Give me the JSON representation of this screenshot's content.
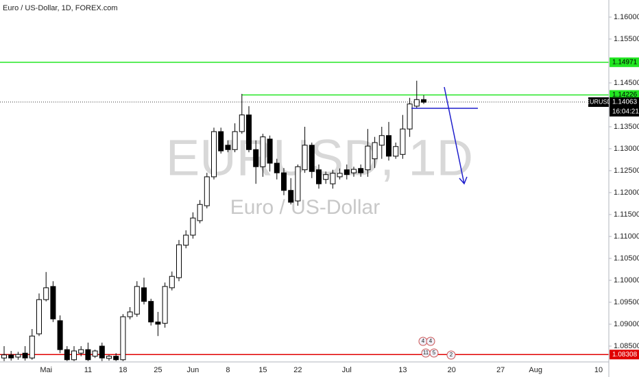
{
  "chart_data": {
    "type": "candlestick",
    "title": "Euro / US-Dollar, 1D, FOREX.com",
    "watermark": "EURUSD, 1D",
    "watermark_subtitle": "Euro / US-Dollar",
    "categories": [
      null,
      null,
      null,
      null,
      null,
      null,
      "Mai",
      null,
      null,
      null,
      null,
      null,
      "11",
      null,
      null,
      null,
      null,
      "18",
      null,
      null,
      null,
      null,
      "25",
      null,
      null,
      null,
      null,
      "Jun",
      null,
      null,
      null,
      null,
      "8",
      null,
      null,
      null,
      null,
      "15",
      null,
      null,
      null,
      null,
      "22",
      null,
      null,
      null,
      null,
      null,
      null,
      "Jul",
      null,
      null,
      null,
      null,
      null,
      null,
      null,
      "13",
      null,
      null,
      null,
      null,
      null,
      null,
      "20",
      null,
      null,
      null,
      null,
      null,
      null,
      "27",
      null,
      null,
      null,
      null,
      "Aug",
      null,
      null,
      null,
      null,
      null,
      null,
      null,
      null,
      "10",
      null
    ],
    "open": [
      1.0823,
      1.083,
      1.0825,
      1.0834,
      1.0823,
      1.0878,
      1.0956,
      1.0986,
      1.0908,
      1.0842,
      1.0819,
      1.0834,
      1.0842,
      1.0827,
      1.085,
      1.0822,
      1.0827,
      1.0819,
      1.0917,
      1.0923,
      1.0983,
      1.0952,
      1.0905,
      1.0902,
      1.0983,
      1.1006,
      1.108,
      1.1103,
      1.1136,
      1.117,
      1.1236,
      1.1339,
      1.1308,
      1.1298,
      1.1339,
      1.1377,
      1.1298,
      1.1259,
      1.1322,
      1.1267,
      1.1245,
      1.1205,
      1.1181,
      1.1252,
      1.1308,
      1.1252,
      1.123,
      1.122,
      1.1236,
      1.1252,
      1.1245,
      1.1255,
      1.1252,
      1.1277,
      1.1308,
      1.133,
      1.1283,
      1.1287,
      1.1345,
      1.1397,
      1.1412,
      null,
      null,
      null,
      null,
      null,
      null,
      null,
      null,
      null,
      null,
      null,
      null,
      null,
      null,
      null,
      null,
      null,
      null,
      null,
      null,
      null,
      null,
      null,
      null,
      null,
      null
    ],
    "high": [
      1.085,
      1.0839,
      1.0837,
      1.085,
      1.0889,
      1.097,
      1.1019,
      1.0998,
      1.092,
      1.085,
      1.085,
      1.085,
      1.0858,
      1.0842,
      1.0858,
      1.083,
      1.0834,
      1.0923,
      1.0939,
      1.0998,
      1.1006,
      1.0958,
      1.0928,
      1.0995,
      1.102,
      1.1092,
      1.1114,
      1.1155,
      1.1183,
      1.1245,
      1.1348,
      1.1348,
      1.1319,
      1.1358,
      1.1425,
      1.1397,
      1.1319,
      1.1334,
      1.133,
      1.1277,
      1.1256,
      1.1233,
      1.1264,
      1.135,
      1.1314,
      1.1264,
      1.1248,
      1.1252,
      1.1255,
      1.1264,
      1.1259,
      1.1264,
      1.1345,
      1.1327,
      1.135,
      1.1361,
      1.1314,
      1.1377,
      1.1416,
      1.1455,
      1.1422,
      null,
      null,
      null,
      null,
      null,
      null,
      null,
      null,
      null,
      null,
      null,
      null,
      null,
      null,
      null,
      null,
      null,
      null,
      null,
      null,
      null,
      null,
      null,
      null,
      null,
      null
    ],
    "low": [
      1.0816,
      1.0817,
      1.0819,
      1.0817,
      1.0819,
      1.0873,
      1.0952,
      1.0905,
      1.0834,
      1.0816,
      1.0816,
      1.0827,
      1.0816,
      1.0823,
      1.0816,
      1.0817,
      1.0816,
      1.0816,
      1.0911,
      1.0917,
      1.0945,
      1.0897,
      1.0873,
      1.0892,
      1.0977,
      1.0998,
      1.1073,
      1.1095,
      1.113,
      1.1164,
      1.123,
      1.1289,
      1.1292,
      1.1292,
      1.1334,
      1.1292,
      1.122,
      1.1236,
      1.1248,
      1.123,
      1.1194,
      1.1173,
      1.117,
      1.1245,
      1.1233,
      1.1209,
      1.122,
      1.1209,
      1.123,
      1.123,
      1.1236,
      1.1236,
      1.1236,
      1.1256,
      1.1277,
      1.1273,
      1.1277,
      1.1277,
      1.1327,
      1.1392,
      1.1402,
      null,
      null,
      null,
      null,
      null,
      null,
      null,
      null,
      null,
      null,
      null,
      null,
      null,
      null,
      null,
      null,
      null,
      null,
      null,
      null,
      null,
      null,
      null,
      null,
      null,
      null
    ],
    "close": [
      1.083,
      1.0823,
      1.0831,
      1.0823,
      1.0873,
      1.0956,
      1.0983,
      1.0912,
      1.0842,
      1.0819,
      1.0839,
      1.0842,
      1.0819,
      1.0839,
      1.0823,
      1.0827,
      1.0819,
      1.0917,
      1.0928,
      1.0986,
      1.0952,
      1.0905,
      1.09,
      1.0986,
      1.1009,
      1.1081,
      1.1103,
      1.1142,
      1.1173,
      1.1236,
      1.1339,
      1.1295,
      1.1298,
      1.1339,
      1.1377,
      1.1298,
      1.1259,
      1.1327,
      1.1267,
      1.1245,
      1.1205,
      1.1178,
      1.1259,
      1.1308,
      1.1248,
      1.122,
      1.1241,
      1.1244,
      1.1244,
      1.1241,
      1.1253,
      1.1245,
      1.1306,
      1.1314,
      1.133,
      1.1283,
      1.1305,
      1.1345,
      1.1402,
      1.1412,
      1.1406,
      null,
      null,
      null,
      null,
      null,
      null,
      null,
      null,
      null,
      null,
      null,
      null,
      null,
      null,
      null,
      null,
      null,
      null,
      null,
      null,
      null,
      null,
      null,
      null,
      null,
      null
    ],
    "up_color": "#ffffff",
    "down_color": "#000000",
    "ylim": [
      1.0814,
      1.1639
    ],
    "yticks": [
      {
        "value": 1.085,
        "label": "1.08500"
      },
      {
        "value": 1.09,
        "label": "1.09000"
      },
      {
        "value": 1.095,
        "label": "1.09500"
      },
      {
        "value": 1.1,
        "label": "1.10000"
      },
      {
        "value": 1.105,
        "label": "1.10500"
      },
      {
        "value": 1.11,
        "label": "1.11000"
      },
      {
        "value": 1.115,
        "label": "1.11500"
      },
      {
        "value": 1.12,
        "label": "1.12000"
      },
      {
        "value": 1.125,
        "label": "1.12500"
      },
      {
        "value": 1.13,
        "label": "1.13000"
      },
      {
        "value": 1.135,
        "label": "1.13500"
      },
      {
        "value": 1.145,
        "label": "1.14500"
      },
      {
        "value": 1.155,
        "label": "1.15500"
      },
      {
        "value": 1.16,
        "label": "1.16000"
      }
    ],
    "grid": false,
    "levels": [
      {
        "value": 1.14971,
        "label": "1.14971",
        "color": "#22e622",
        "text_color": "#000000"
      },
      {
        "value": 1.14226,
        "label": "1.14226",
        "color": "#22e622",
        "text_color": "#000000"
      },
      {
        "value": 1.08308,
        "label": "1.08308",
        "color": "#e00000",
        "text_color": "#ffffff"
      }
    ],
    "last_price": {
      "value": 1.14063,
      "label": "1.14063",
      "symbol": "EURUSD",
      "countdown": "16:04:21"
    },
    "events": [
      "4",
      "4",
      "11",
      "5",
      "2"
    ]
  }
}
